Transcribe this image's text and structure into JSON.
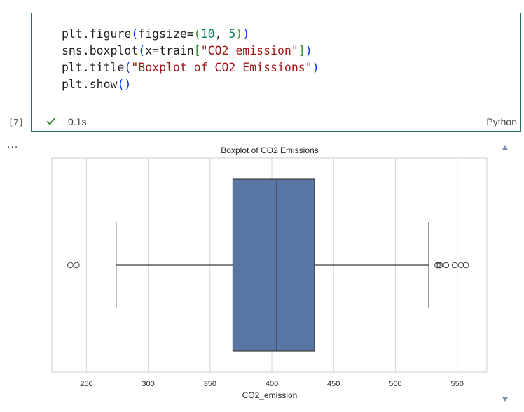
{
  "cell": {
    "execution_count": "[7]",
    "status": "success",
    "elapsed": "0.1s",
    "language": "Python",
    "output_menu": "..."
  },
  "code": {
    "lines": [
      [
        [
          "fn",
          "plt.figure"
        ],
        [
          "p1",
          "("
        ],
        [
          "fn",
          "figsize="
        ],
        [
          "p2",
          "("
        ],
        [
          "num",
          "10"
        ],
        [
          "fn",
          ", "
        ],
        [
          "num",
          "5"
        ],
        [
          "p2",
          ")"
        ],
        [
          "p1",
          ")"
        ]
      ],
      [
        [
          "fn",
          "sns.boxplot"
        ],
        [
          "p1",
          "("
        ],
        [
          "fn",
          "x=train"
        ],
        [
          "p2",
          "["
        ],
        [
          "str",
          "\"CO2_emission\""
        ],
        [
          "p2",
          "]"
        ],
        [
          "p1",
          ")"
        ]
      ],
      [
        [
          "fn",
          "plt.title"
        ],
        [
          "p1",
          "("
        ],
        [
          "str",
          "\"Boxplot of CO2 Emissions\""
        ],
        [
          "p1",
          ")"
        ]
      ],
      [
        [
          "fn",
          "plt.show"
        ],
        [
          "p1",
          "()"
        ]
      ]
    ]
  },
  "colors": {
    "box_fill": "#5875a4",
    "line": "#3d3d3d",
    "grid": "#d6d6d6",
    "cell_border": "#2a6e68",
    "check": "#388a34"
  },
  "chart_data": {
    "type": "boxplot",
    "title": "Boxplot of CO2 Emissions",
    "xlabel": "CO2_emission",
    "ylabel": "",
    "xlim": [
      222,
      574
    ],
    "xticks": [
      250,
      300,
      350,
      400,
      450,
      500,
      550
    ],
    "grid": true,
    "box": {
      "whisker_low": 274,
      "q1": 368.5,
      "median": 404,
      "q3": 434.5,
      "whisker_high": 527
    },
    "outliers": [
      237,
      242,
      534,
      535,
      536,
      541,
      548,
      553,
      557
    ]
  }
}
